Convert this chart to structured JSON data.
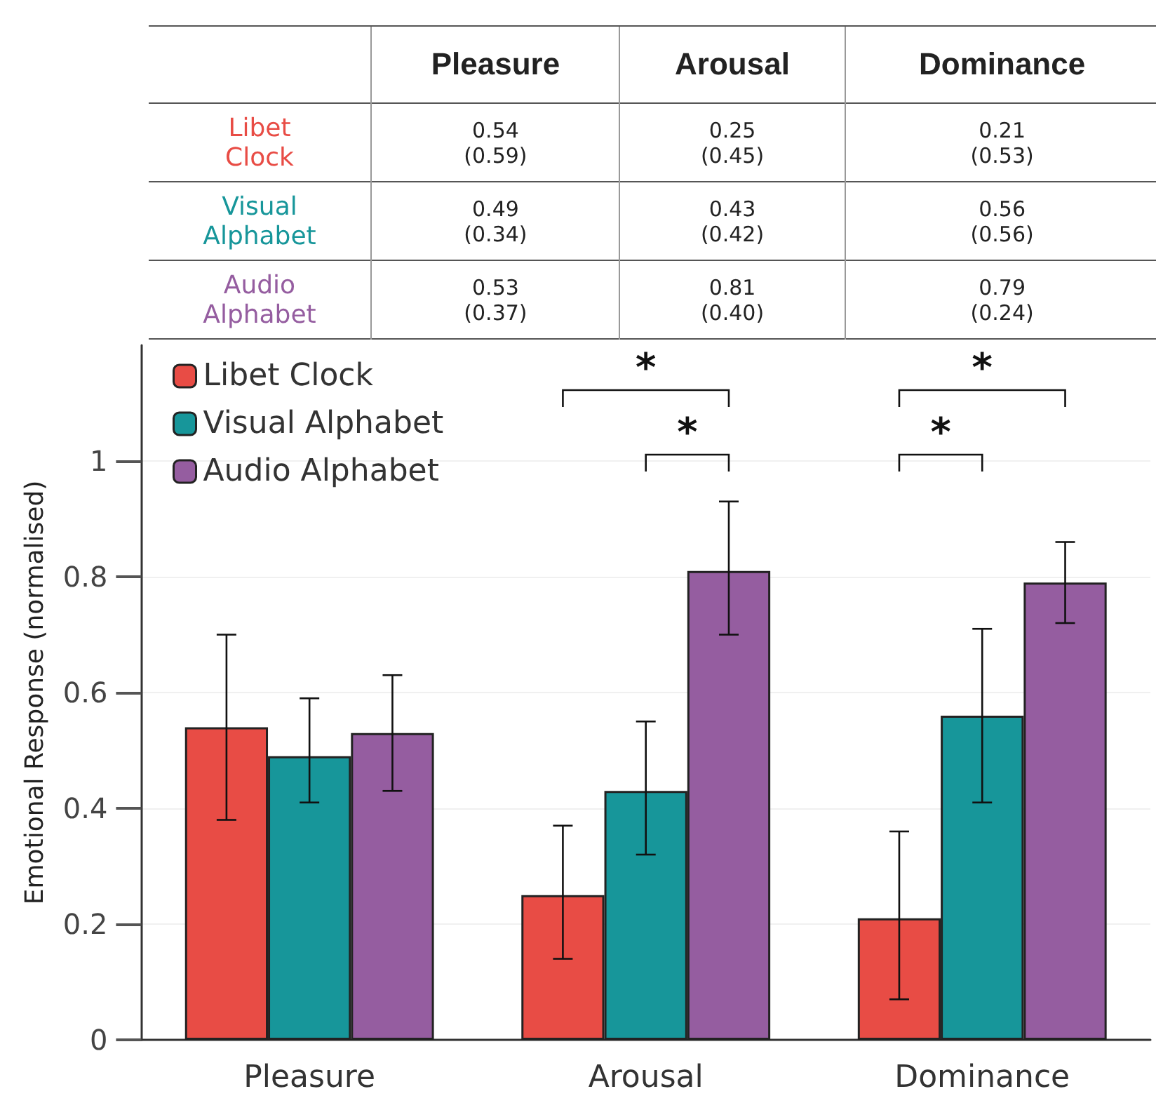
{
  "chart_data": {
    "type": "bar",
    "ylabel": "Emotional Response (normalised)",
    "categories": [
      "Pleasure",
      "Arousal",
      "Dominance"
    ],
    "series": [
      {
        "name": "Libet Clock",
        "color": "#e84c45",
        "values": [
          0.54,
          0.25,
          0.21
        ],
        "errors": [
          [
            0.38,
            0.7
          ],
          [
            0.14,
            0.37
          ],
          [
            0.07,
            0.36
          ]
        ]
      },
      {
        "name": "Visual Alphabet",
        "color": "#17969a",
        "values": [
          0.49,
          0.43,
          0.56
        ],
        "errors": [
          [
            0.41,
            0.59
          ],
          [
            0.32,
            0.55
          ],
          [
            0.41,
            0.71
          ]
        ]
      },
      {
        "name": "Audio Alphabet",
        "color": "#955da0",
        "values": [
          0.53,
          0.81,
          0.79
        ],
        "errors": [
          [
            0.43,
            0.63
          ],
          [
            0.7,
            0.93
          ],
          [
            0.72,
            0.86
          ]
        ]
      }
    ],
    "ylim": [
      0,
      1.2
    ],
    "yticks": [
      0,
      0.2,
      0.4,
      0.6,
      0.8,
      1
    ],
    "grid": "y",
    "legend": "top left",
    "annotations": [
      "0.54\n(0.59)",
      "0.25\n(0.45)",
      "0.21\n(0.53)",
      "0.49\n(0.34)",
      "0.43\n(0.42)",
      "0.56\n(0.56)",
      "0.53\n(0.37)",
      "0.81\n(0.40)",
      "0.79\n(0.24)",
      "*",
      "*",
      "*",
      "*"
    ]
  }
}
